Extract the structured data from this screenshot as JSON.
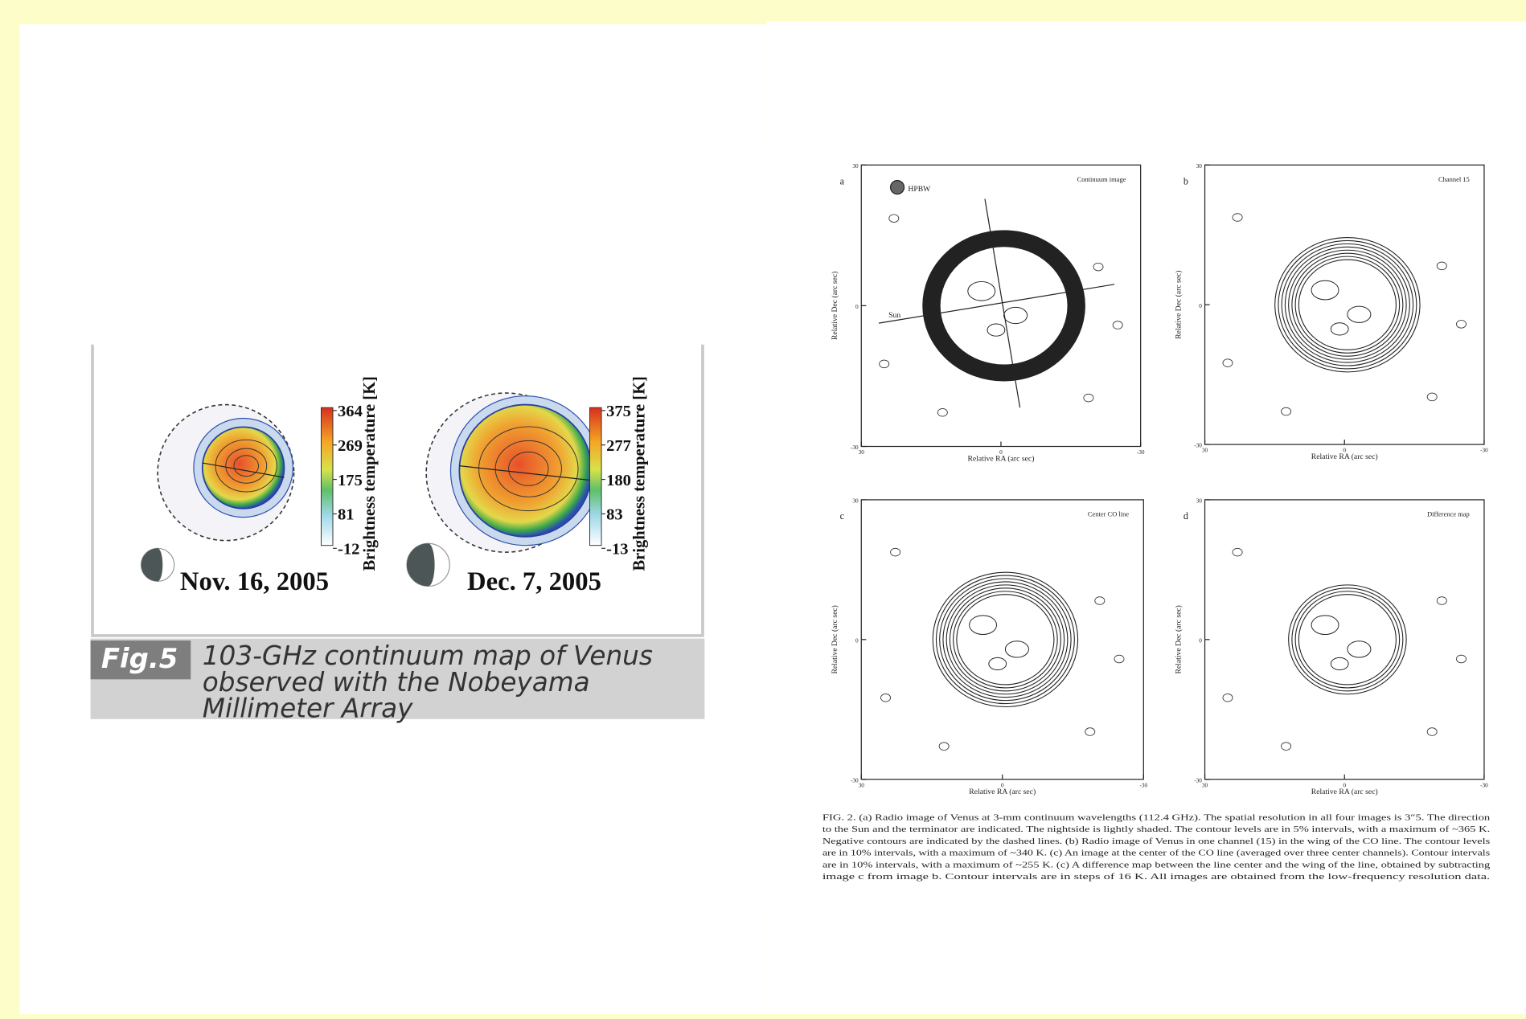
{
  "left_figure": {
    "colorbar_label": "Brightness temperature [K]",
    "panels": [
      {
        "date": "Nov. 16, 2005",
        "colorbar_ticks": [
          364,
          269,
          175,
          81,
          -12
        ]
      },
      {
        "date": "Dec. 7, 2005",
        "colorbar_ticks": [
          375,
          277,
          180,
          83,
          -13
        ]
      }
    ],
    "caption": {
      "label": "Fig.5",
      "lines": [
        "103-GHz continuum map of Venus",
        "observed with the Nobeyama",
        "Millimeter Array"
      ]
    }
  },
  "right_figure": {
    "axis_labels": {
      "x": "Relative RA (arc sec)",
      "y": "Relative Dec (arc sec)"
    },
    "ticks": [
      30,
      0,
      -30
    ],
    "beam_label": "HPBW",
    "sun_label": "Sun",
    "panels": [
      {
        "letter": "a",
        "title": "Continuum image"
      },
      {
        "letter": "b",
        "title": "Channel 15"
      },
      {
        "letter": "c",
        "title": "Center CO line"
      },
      {
        "letter": "d",
        "title": "Difference map"
      }
    ],
    "caption": [
      "FIG. 2.   (a) Radio image of Venus at 3-mm continuum wavelengths (112.4 GHz). The spatial resolution in all four images is 3″5. The direction",
      "to the Sun and the terminator are indicated. The nightside is lightly shaded. The contour levels are in 5% intervals, with a maximum of ~365 K.",
      "Negative contours are indicated by the dashed lines. (b) Radio image of Venus in one channel (15) in the wing of the CO line. The contour levels",
      "are in 10% intervals, with a maximum of ~340 K. (c) An image at the center of the CO line (averaged over three center channels). Contour intervals",
      "are in 10% intervals, with a maximum of ~255 K. (c) A difference map between the line center and the wing of the line, obtained by subtracting",
      "image c from image b. Contour intervals are in steps of 16 K. All images are obtained from the low-frequency resolution data."
    ]
  }
}
